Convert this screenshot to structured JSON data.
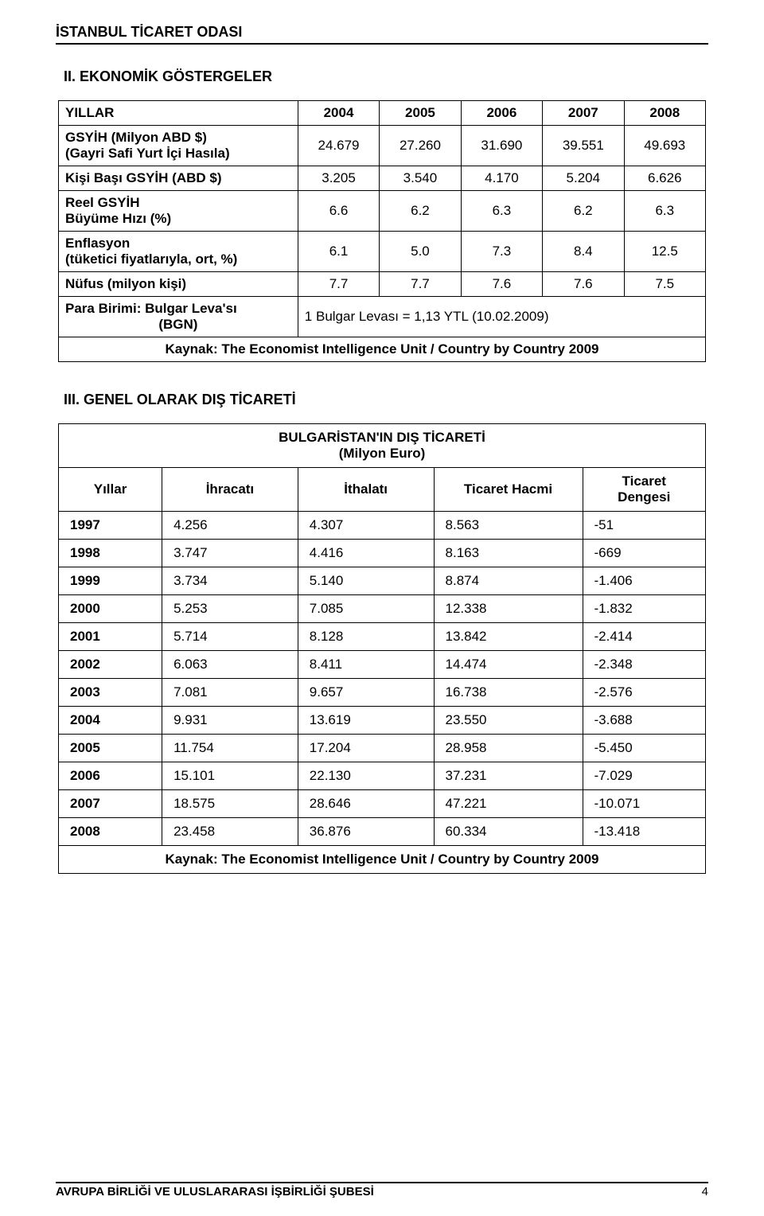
{
  "header": {
    "org": "İSTANBUL TİCARET ODASI"
  },
  "section2": {
    "title": "II. EKONOMİK GÖSTERGELER",
    "table": {
      "yillar_label": "YILLAR",
      "years": [
        "2004",
        "2005",
        "2006",
        "2007",
        "2008"
      ],
      "rows": [
        {
          "label": "GSYİH (Milyon ABD $)\n(Gayri Safi Yurt İçi Hasıla)",
          "vals": [
            "24.679",
            "27.260",
            "31.690",
            "39.551",
            "49.693"
          ]
        },
        {
          "label": "Kişi Başı GSYİH (ABD $)",
          "vals": [
            "3.205",
            "3.540",
            "4.170",
            "5.204",
            "6.626"
          ]
        },
        {
          "label": "Reel GSYİH\nBüyüme Hızı (%)",
          "vals": [
            "6.6",
            "6.2",
            "6.3",
            "6.2",
            "6.3"
          ]
        },
        {
          "label": "Enflasyon\n(tüketici fiyatlarıyla, ort, %)",
          "vals": [
            "6.1",
            "5.0",
            "7.3",
            "8.4",
            "12.5"
          ]
        },
        {
          "label": "Nüfus (milyon kişi)",
          "vals": [
            "7.7",
            "7.7",
            "7.6",
            "7.6",
            "7.5"
          ]
        }
      ],
      "para_label": "Para Birimi: Bulgar Leva'sı\n(BGN)",
      "para_note": "1 Bulgar Levası = 1,13 YTL (10.02.2009)",
      "source": "Kaynak: The Economist Intelligence Unit / Country by Country 2009"
    }
  },
  "section3": {
    "title": "III. GENEL OLARAK DIŞ TİCARETİ",
    "table": {
      "title_line1": "BULGARİSTAN'IN DIŞ TİCARETİ",
      "title_line2": "(Milyon Euro)",
      "columns": [
        "Yıllar",
        "İhracatı",
        "İthalatı",
        "Ticaret Hacmi",
        "Ticaret\nDengesi"
      ],
      "rows": [
        [
          "1997",
          "4.256",
          "4.307",
          "8.563",
          "-51"
        ],
        [
          "1998",
          "3.747",
          "4.416",
          "8.163",
          "-669"
        ],
        [
          "1999",
          "3.734",
          "5.140",
          "8.874",
          "-1.406"
        ],
        [
          "2000",
          "5.253",
          "7.085",
          "12.338",
          "-1.832"
        ],
        [
          "2001",
          "5.714",
          "8.128",
          "13.842",
          "-2.414"
        ],
        [
          "2002",
          "6.063",
          "8.411",
          "14.474",
          "-2.348"
        ],
        [
          "2003",
          "7.081",
          "9.657",
          "16.738",
          "-2.576"
        ],
        [
          "2004",
          "9.931",
          "13.619",
          "23.550",
          "-3.688"
        ],
        [
          "2005",
          "11.754",
          "17.204",
          "28.958",
          "-5.450"
        ],
        [
          "2006",
          "15.101",
          "22.130",
          "37.231",
          "-7.029"
        ],
        [
          "2007",
          "18.575",
          "28.646",
          "47.221",
          "-10.071"
        ],
        [
          "2008",
          "23.458",
          "36.876",
          "60.334",
          "-13.418"
        ]
      ],
      "source": "Kaynak: The Economist Intelligence Unit / Country by Country 2009"
    }
  },
  "footer": {
    "unit": "AVRUPA BİRLİĞİ VE ULUSLARARASI İŞBİRLİĞİ ŞUBESİ",
    "page_number": "4"
  }
}
